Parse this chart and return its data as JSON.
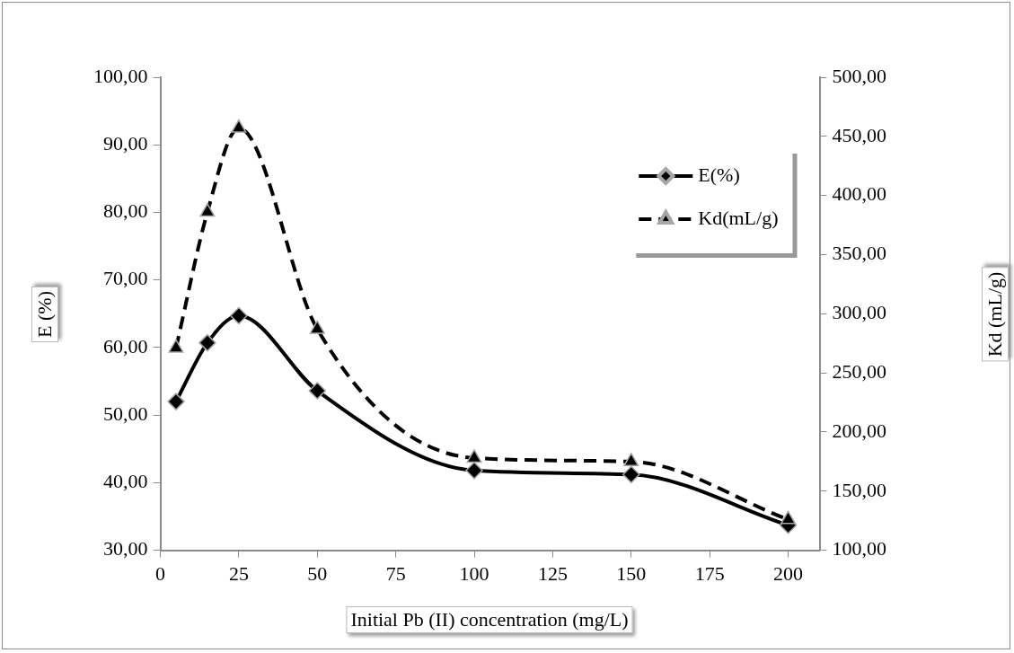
{
  "chart_data": {
    "type": "line",
    "xlabel": "Initial Pb (II) concentration (mg/L)",
    "ylabel": "E (%)",
    "y2label": "Kd (mL/g)",
    "x": [
      5,
      15,
      25,
      50,
      100,
      150,
      200
    ],
    "series": [
      {
        "name": "E(%)",
        "color": "#000000",
        "marker": "diamond",
        "line_style": "solid",
        "values": [
          52.0,
          60.7,
          64.7,
          53.6,
          41.8,
          41.2,
          33.7
        ]
      },
      {
        "name": "Kd(mL/g)",
        "color": "#000000",
        "marker": "triangle",
        "line_style": "dashed",
        "axis": "y2",
        "values": [
          271,
          386,
          457,
          287,
          178,
          175,
          126
        ]
      }
    ],
    "xlim": [
      0,
      210
    ],
    "xticks": [
      0,
      25,
      50,
      75,
      100,
      125,
      150,
      175,
      200
    ],
    "ylim": [
      30,
      100
    ],
    "yticks": [
      {
        "value": 30,
        "label": "30,00"
      },
      {
        "value": 40,
        "label": "40,00"
      },
      {
        "value": 50,
        "label": "50,00"
      },
      {
        "value": 60,
        "label": "60,00"
      },
      {
        "value": 70,
        "label": "70,00"
      },
      {
        "value": 80,
        "label": "80,00"
      },
      {
        "value": 90,
        "label": "90,00"
      },
      {
        "value": 100,
        "label": "100,00"
      }
    ],
    "y2lim": [
      100,
      500
    ],
    "y2ticks": [
      {
        "value": 100,
        "label": "100,00"
      },
      {
        "value": 150,
        "label": "150,00"
      },
      {
        "value": 200,
        "label": "200,00"
      },
      {
        "value": 250,
        "label": "250,00"
      },
      {
        "value": 300,
        "label": "300,00"
      },
      {
        "value": 350,
        "label": "350,00"
      },
      {
        "value": 400,
        "label": "400,00"
      },
      {
        "value": 450,
        "label": "450,00"
      },
      {
        "value": 500,
        "label": "500,00"
      }
    ],
    "grid": false,
    "legend": "top right"
  }
}
